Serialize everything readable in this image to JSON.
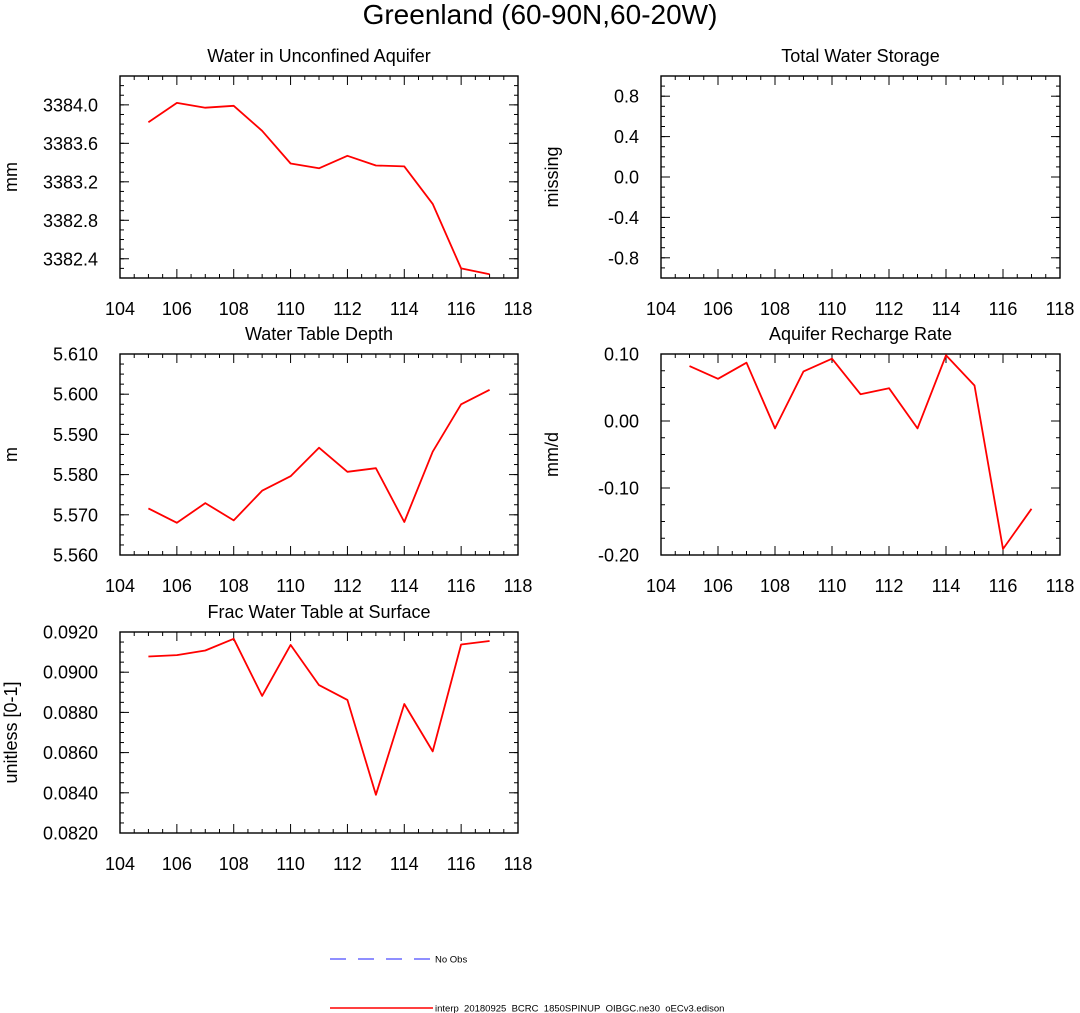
{
  "figure_title": "Greenland (60-90N,60-20W)",
  "legend": {
    "items": [
      {
        "label": "No Obs",
        "color": "#6a6aff",
        "dash": true
      },
      {
        "label": "interp_20180925_BCRC_1850SPINUP_OIBGC.ne30_oECv3.edison",
        "color": "#ff0000",
        "dash": false
      }
    ]
  },
  "chart_data": [
    {
      "type": "line",
      "title": "Water in Unconfined Aquifer",
      "ylabel": "mm",
      "xlim": [
        104,
        118
      ],
      "ylim": [
        3382.2,
        3384.3
      ],
      "xticks": [
        "104",
        "106",
        "108",
        "110",
        "112",
        "114",
        "116",
        "118"
      ],
      "yticks": [
        "3382.4",
        "3382.8",
        "3383.2",
        "3383.6",
        "3384.0"
      ],
      "series": [
        {
          "color": "#ff0000",
          "x": [
            105,
            106,
            107,
            108,
            109,
            110,
            111,
            112,
            113,
            114,
            115,
            116,
            117
          ],
          "y": [
            3383.82,
            3384.02,
            3383.97,
            3383.99,
            3383.73,
            3383.39,
            3383.34,
            3383.47,
            3383.37,
            3383.36,
            3382.97,
            3382.3,
            3382.24
          ]
        }
      ]
    },
    {
      "type": "line",
      "title": "Total Water Storage",
      "ylabel": "missing",
      "xlim": [
        104,
        118
      ],
      "ylim": [
        -1,
        1
      ],
      "xticks": [
        "104",
        "106",
        "108",
        "110",
        "112",
        "114",
        "116",
        "118"
      ],
      "yticks": [
        "-0.8",
        "-0.4",
        "0.0",
        "0.4",
        "0.8"
      ],
      "series": []
    },
    {
      "type": "line",
      "title": "Water Table Depth",
      "ylabel": "m",
      "xlim": [
        104,
        118
      ],
      "ylim": [
        5.56,
        5.61
      ],
      "xticks": [
        "104",
        "106",
        "108",
        "110",
        "112",
        "114",
        "116",
        "118"
      ],
      "yticks": [
        "5.560",
        "5.570",
        "5.580",
        "5.590",
        "5.600",
        "5.610"
      ],
      "series": [
        {
          "color": "#ff0000",
          "x": [
            105,
            106,
            107,
            108,
            109,
            110,
            111,
            112,
            113,
            114,
            115,
            116,
            117
          ],
          "y": [
            5.5716,
            5.568,
            5.5729,
            5.5686,
            5.576,
            5.5796,
            5.5867,
            5.5807,
            5.5816,
            5.5682,
            5.5857,
            5.5975,
            5.6011
          ]
        }
      ]
    },
    {
      "type": "line",
      "title": "Aquifer Recharge Rate",
      "ylabel": "mm/d",
      "xlim": [
        104,
        118
      ],
      "ylim": [
        -0.2,
        0.1
      ],
      "xticks": [
        "104",
        "106",
        "108",
        "110",
        "112",
        "114",
        "116",
        "118"
      ],
      "yticks": [
        "-0.20",
        "-0.10",
        "0.00",
        "0.10"
      ],
      "series": [
        {
          "color": "#ff0000",
          "x": [
            105,
            106,
            107,
            108,
            109,
            110,
            111,
            112,
            113,
            114,
            115,
            116,
            117
          ],
          "y": [
            0.082,
            0.063,
            0.087,
            -0.011,
            0.074,
            0.093,
            0.04,
            0.049,
            -0.011,
            0.098,
            0.053,
            -0.191,
            -0.131
          ]
        }
      ]
    },
    {
      "type": "line",
      "title": "Frac Water Table at Surface",
      "ylabel": "unitless [0-1]",
      "xlim": [
        104,
        118
      ],
      "ylim": [
        0.082,
        0.092
      ],
      "xticks": [
        "104",
        "106",
        "108",
        "110",
        "112",
        "114",
        "116",
        "118"
      ],
      "yticks": [
        "0.0820",
        "0.0840",
        "0.0860",
        "0.0880",
        "0.0900",
        "0.0920"
      ],
      "series": [
        {
          "color": "#ff0000",
          "x": [
            105,
            106,
            107,
            108,
            109,
            110,
            111,
            112,
            113,
            114,
            115,
            116,
            117
          ],
          "y": [
            0.09078,
            0.09085,
            0.09108,
            0.09166,
            0.08882,
            0.09136,
            0.08936,
            0.08862,
            0.0839,
            0.08842,
            0.08606,
            0.09138,
            0.09155
          ]
        }
      ]
    }
  ]
}
